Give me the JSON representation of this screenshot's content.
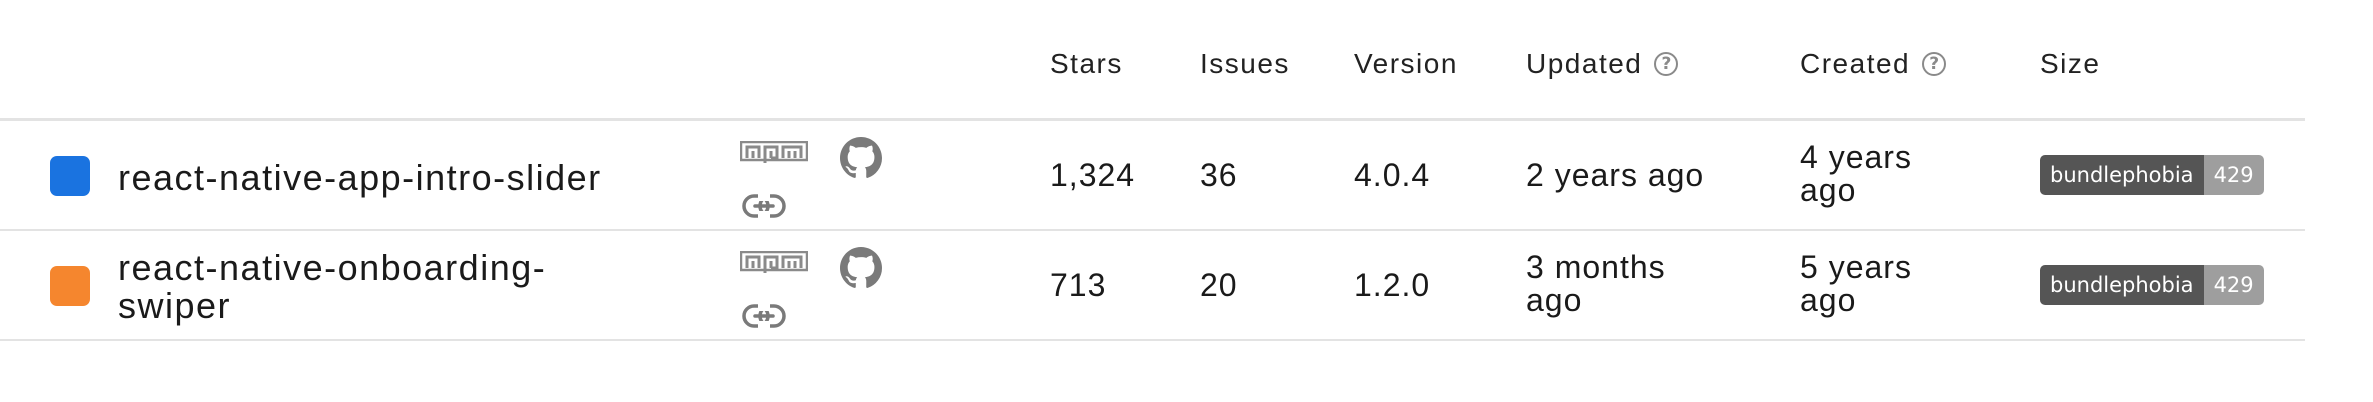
{
  "header": {
    "stars": "Stars",
    "issues": "Issues",
    "version": "Version",
    "updated": "Updated",
    "created": "Created",
    "size": "Size"
  },
  "help_icon_glyph": "?",
  "rows": [
    {
      "color": "#1a73e0",
      "name": "react-native-app-intro-slider",
      "stars": "1,324",
      "issues": "36",
      "version": "4.0.4",
      "updated": "2 years ago",
      "created": "4 years ago",
      "badge_label": "bundlephobia",
      "badge_value": "429",
      "icons": [
        "npm-icon",
        "github-icon",
        "link-icon"
      ]
    },
    {
      "color": "#f5862e",
      "name": "react-native-onboarding-swiper",
      "stars": "713",
      "issues": "20",
      "version": "1.2.0",
      "updated": "3 months ago",
      "created": "5 years ago",
      "badge_label": "bundlephobia",
      "badge_value": "429",
      "icons": [
        "npm-icon",
        "github-icon",
        "link-icon"
      ]
    }
  ]
}
